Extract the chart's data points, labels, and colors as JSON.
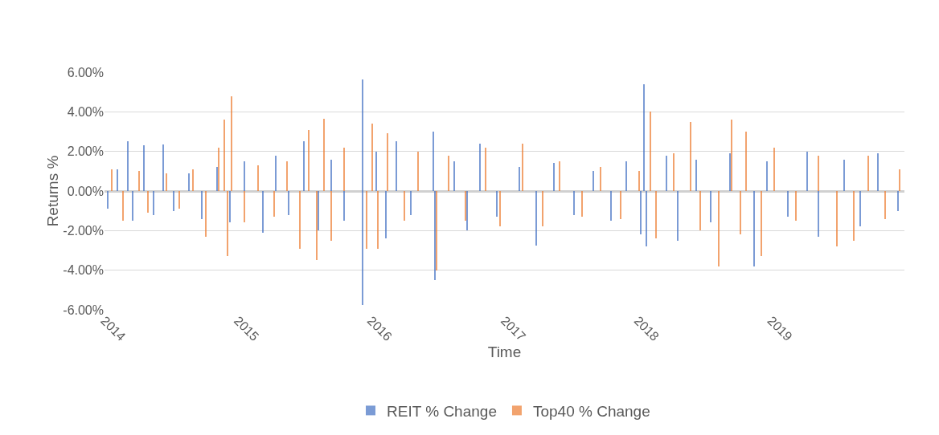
{
  "chart_data": {
    "type": "bar",
    "xlabel": "Time",
    "ylabel": "Returns %",
    "xlim": [
      "2014-01-01",
      "2020-01-01"
    ],
    "xticks": [
      {
        "value": "2014-01-01",
        "label": "2014"
      },
      {
        "value": "2015-01-01",
        "label": "2015"
      },
      {
        "value": "2016-01-01",
        "label": "2016"
      },
      {
        "value": "2017-01-01",
        "label": "2017"
      },
      {
        "value": "2018-01-01",
        "label": "2018"
      },
      {
        "value": "2019-01-01",
        "label": "2019"
      }
    ],
    "ylim": [
      -6,
      6
    ],
    "yticks": [
      {
        "value": -6,
        "label": "-6.00%"
      },
      {
        "value": -4,
        "label": "-4.00%"
      },
      {
        "value": -2,
        "label": "-2.00%"
      },
      {
        "value": 0,
        "label": "0.00%"
      },
      {
        "value": 2,
        "label": "2.00%"
      },
      {
        "value": 4,
        "label": "4.00%"
      },
      {
        "value": 6,
        "label": "6.00%"
      }
    ],
    "grid": "y",
    "legend": "bottom",
    "series": [
      {
        "name": "REIT % Change",
        "color": "#4472c4",
        "x": [
          "2014-01-10",
          "2014-02-05",
          "2014-03-05",
          "2014-03-20",
          "2014-04-20",
          "2014-05-15",
          "2014-06-10",
          "2014-07-10",
          "2014-08-20",
          "2014-09-25",
          "2014-11-05",
          "2014-12-10",
          "2015-01-20",
          "2015-03-10",
          "2015-04-15",
          "2015-05-20",
          "2015-07-01",
          "2015-08-10",
          "2015-09-15",
          "2015-10-20",
          "2015-12-08",
          "2015-12-10",
          "2016-01-15",
          "2016-02-10",
          "2016-03-10",
          "2016-04-20",
          "2016-06-20",
          "2016-06-24",
          "2016-08-15",
          "2016-09-20",
          "2016-10-25",
          "2016-12-10",
          "2017-02-10",
          "2017-03-28",
          "2017-05-15",
          "2017-07-10",
          "2017-09-01",
          "2017-10-20",
          "2017-12-01",
          "2018-01-10",
          "2018-01-18",
          "2018-01-25",
          "2018-03-20",
          "2018-04-20",
          "2018-06-10",
          "2018-07-20",
          "2018-09-10",
          "2018-11-15",
          "2018-12-20",
          "2019-02-15",
          "2019-04-10",
          "2019-05-10",
          "2019-07-20",
          "2019-09-01",
          "2019-10-20",
          "2019-12-15"
        ],
        "values": [
          -0.9,
          1.1,
          2.5,
          -1.5,
          2.3,
          -1.2,
          2.35,
          -1.0,
          0.9,
          -1.4,
          1.2,
          -1.6,
          1.5,
          -2.1,
          1.8,
          -1.2,
          2.5,
          -2.0,
          1.6,
          -1.5,
          5.65,
          -5.75,
          2.0,
          -2.4,
          2.5,
          -1.2,
          3.0,
          -4.5,
          1.5,
          -2.0,
          2.4,
          -1.3,
          1.2,
          -2.75,
          1.4,
          -1.2,
          1.0,
          -1.5,
          1.5,
          -2.2,
          5.4,
          -2.8,
          1.8,
          -2.5,
          1.6,
          -1.6,
          1.9,
          -3.8,
          1.5,
          -1.3,
          2.0,
          -2.3,
          1.6,
          -1.8,
          1.9,
          -1.0
        ]
      },
      {
        "name": "Top40 % Change",
        "color": "#ed7d31",
        "x": [
          "2014-01-20",
          "2014-02-20",
          "2014-04-05",
          "2014-05-01",
          "2014-06-20",
          "2014-07-25",
          "2014-09-01",
          "2014-10-05",
          "2014-11-10",
          "2014-11-25",
          "2014-12-05",
          "2014-12-15",
          "2015-01-20",
          "2015-02-25",
          "2015-04-10",
          "2015-05-15",
          "2015-06-20",
          "2015-07-15",
          "2015-08-05",
          "2015-08-25",
          "2015-09-15",
          "2015-10-20",
          "2015-12-20",
          "2016-01-05",
          "2016-01-20",
          "2016-02-15",
          "2016-04-01",
          "2016-05-10",
          "2016-06-28",
          "2016-08-01",
          "2016-09-15",
          "2016-11-10",
          "2016-12-20",
          "2017-02-20",
          "2017-04-15",
          "2017-06-01",
          "2017-08-01",
          "2017-09-20",
          "2017-11-15",
          "2018-01-05",
          "2018-02-05",
          "2018-02-20",
          "2018-04-10",
          "2018-05-25",
          "2018-06-20",
          "2018-08-10",
          "2018-09-15",
          "2018-10-10",
          "2018-10-25",
          "2018-12-05",
          "2019-01-10",
          "2019-03-10",
          "2019-05-10",
          "2019-07-01",
          "2019-08-15",
          "2019-09-25",
          "2019-11-10",
          "2019-12-20"
        ],
        "values": [
          1.1,
          -1.5,
          1.0,
          -1.1,
          0.9,
          -0.9,
          1.1,
          -2.3,
          2.2,
          3.6,
          -3.3,
          4.8,
          -1.6,
          1.3,
          -1.3,
          1.5,
          -2.9,
          3.1,
          -3.5,
          3.65,
          -2.5,
          2.2,
          -2.9,
          3.4,
          -2.9,
          2.9,
          -1.5,
          2.0,
          -4.0,
          1.8,
          -1.5,
          2.2,
          -1.8,
          2.4,
          -1.8,
          1.5,
          -1.3,
          1.2,
          -1.4,
          1.0,
          4.0,
          -2.4,
          1.9,
          3.5,
          -2.0,
          -3.8,
          3.6,
          -2.2,
          3.0,
          -3.3,
          2.2,
          -1.5,
          1.8,
          -2.8,
          -2.5,
          1.8,
          -1.4,
          1.1
        ]
      }
    ]
  }
}
